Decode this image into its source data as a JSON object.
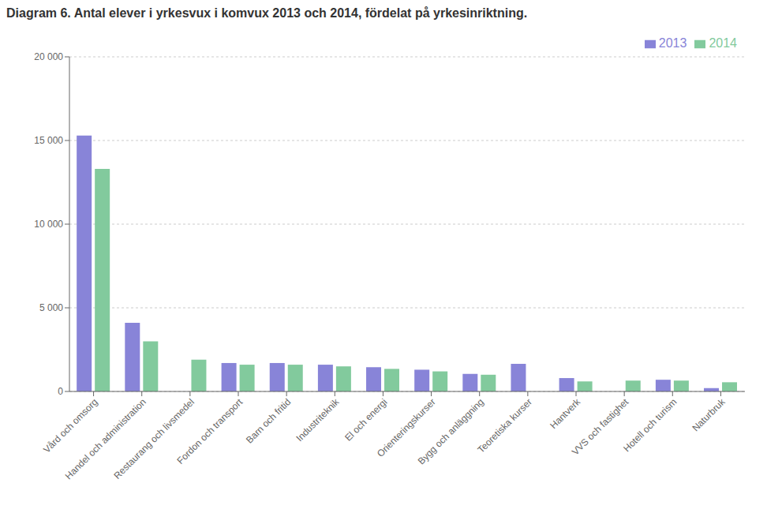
{
  "chart_data": {
    "type": "bar",
    "title": "Diagram 6. Antal elever i yrkesvux i komvux 2013 och 2014, fördelat på yrkesinriktning.",
    "categories": [
      "Vård och omsorg",
      "Handel och administration",
      "Restaurang och livsmedel",
      "Fordon och transport",
      "Barn och fritid",
      "Industriteknik",
      "El och energi",
      "Orienteringskurser",
      "Bygg och anläggning",
      "Teoretiska kurser",
      "Hantverk",
      "VVS och fastighet",
      "Hotell och turism",
      "Naturbruk"
    ],
    "series": [
      {
        "name": "2013",
        "color": "#8884d8",
        "values": [
          15300,
          4100,
          0,
          1700,
          1700,
          1600,
          1450,
          1300,
          1050,
          1650,
          800,
          0,
          700,
          200
        ]
      },
      {
        "name": "2014",
        "color": "#82ca9d",
        "values": [
          13300,
          3000,
          1900,
          1600,
          1600,
          1500,
          1350,
          1200,
          1000,
          0,
          600,
          650,
          650,
          550
        ]
      }
    ],
    "ylim": [
      0,
      20000
    ],
    "yticks": [
      0,
      {
        "value": 5000,
        "label": "5 000"
      },
      {
        "value": 10000,
        "label": "10 000"
      },
      {
        "value": 15000,
        "label": "15 000"
      },
      {
        "value": 20000,
        "label": "20 000"
      }
    ],
    "grid": true,
    "legend": "upper right"
  }
}
